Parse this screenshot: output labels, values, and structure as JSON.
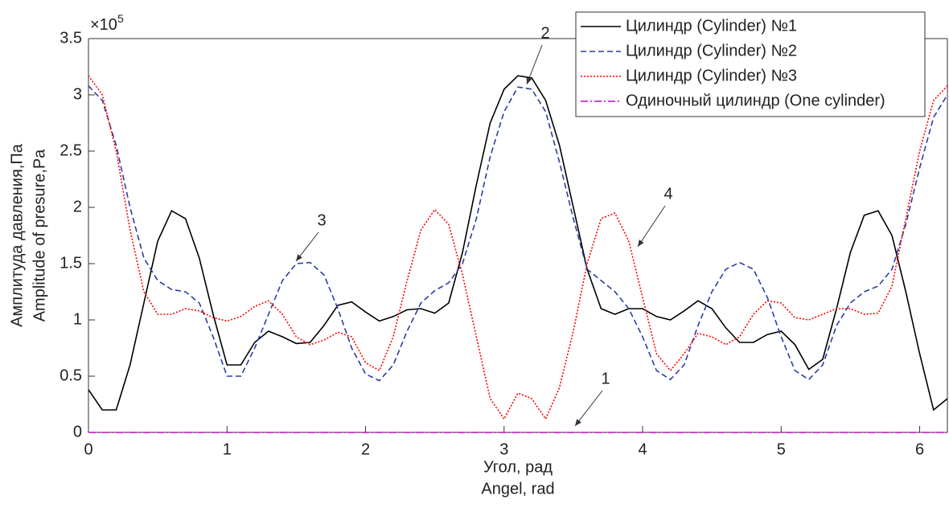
{
  "chart_data": {
    "type": "line",
    "x_label": [
      "Угол, рад",
      "Angel, rad"
    ],
    "y_label": [
      "Амплитуда давления,Па",
      "Amplitude of presure,Pa"
    ],
    "y_exponent": {
      "base": "×10",
      "power": "5"
    },
    "x": [
      0,
      0.1,
      0.2,
      0.3,
      0.4,
      0.5,
      0.6,
      0.7,
      0.8,
      0.9,
      1,
      1.1,
      1.2,
      1.3,
      1.4,
      1.5,
      1.6,
      1.7,
      1.8,
      1.9,
      2,
      2.1,
      2.2,
      2.3,
      2.4,
      2.5,
      2.6,
      2.7,
      2.8,
      2.9,
      3,
      3.1,
      3.2,
      3.3,
      3.4,
      3.5,
      3.6,
      3.7,
      3.8,
      3.9,
      4,
      4.1,
      4.2,
      4.3,
      4.4,
      4.5,
      4.6,
      4.7,
      4.8,
      4.9,
      5,
      5.1,
      5.2,
      5.3,
      5.4,
      5.5,
      5.6,
      5.7,
      5.8,
      5.9,
      6,
      6.1,
      6.2
    ],
    "series": [
      {
        "name": "Цилиндр (Cylinder) №1",
        "color": "#000000",
        "dash": "solid",
        "values": [
          0.38,
          0.2,
          0.2,
          0.6,
          1.15,
          1.7,
          1.97,
          1.9,
          1.55,
          1.05,
          0.6,
          0.6,
          0.8,
          0.9,
          0.85,
          0.79,
          0.8,
          0.95,
          1.13,
          1.16,
          1.07,
          0.99,
          1.03,
          1.09,
          1.1,
          1.06,
          1.15,
          1.6,
          2.2,
          2.75,
          3.05,
          3.17,
          3.15,
          2.95,
          2.55,
          2.0,
          1.45,
          1.1,
          1.05,
          1.1,
          1.1,
          1.03,
          1.0,
          1.08,
          1.17,
          1.1,
          0.93,
          0.8,
          0.8,
          0.87,
          0.9,
          0.78,
          0.56,
          0.65,
          1.1,
          1.6,
          1.93,
          1.97,
          1.75,
          1.25,
          0.7,
          0.2,
          0.3
        ]
      },
      {
        "name": "Цилиндр (Cylinder) №2",
        "color": "#2b3fa0",
        "dash": "dashed",
        "values": [
          3.08,
          2.95,
          2.55,
          2.0,
          1.55,
          1.35,
          1.27,
          1.25,
          1.15,
          0.85,
          0.5,
          0.5,
          0.75,
          1.05,
          1.35,
          1.5,
          1.51,
          1.4,
          1.1,
          0.75,
          0.52,
          0.46,
          0.6,
          0.9,
          1.15,
          1.26,
          1.33,
          1.5,
          1.9,
          2.45,
          2.85,
          3.07,
          3.05,
          2.85,
          2.4,
          1.9,
          1.45,
          1.35,
          1.25,
          1.1,
          0.85,
          0.55,
          0.47,
          0.6,
          0.95,
          1.25,
          1.45,
          1.51,
          1.45,
          1.2,
          0.85,
          0.55,
          0.47,
          0.6,
          0.95,
          1.15,
          1.25,
          1.3,
          1.45,
          1.85,
          2.35,
          2.8,
          3.0
        ]
      },
      {
        "name": "Цилиндр (Cylinder) №3",
        "color": "#ff0000",
        "dash": "dotted",
        "values": [
          3.17,
          3.0,
          2.5,
          1.8,
          1.25,
          1.05,
          1.05,
          1.1,
          1.08,
          1.02,
          0.99,
          1.03,
          1.12,
          1.17,
          1.05,
          0.85,
          0.78,
          0.82,
          0.89,
          0.85,
          0.62,
          0.55,
          0.85,
          1.35,
          1.8,
          1.98,
          1.85,
          1.4,
          0.85,
          0.3,
          0.12,
          0.35,
          0.3,
          0.12,
          0.4,
          0.9,
          1.5,
          1.9,
          1.95,
          1.7,
          1.2,
          0.7,
          0.55,
          0.7,
          0.88,
          0.85,
          0.78,
          0.85,
          1.05,
          1.17,
          1.15,
          1.02,
          1.0,
          1.05,
          1.1,
          1.1,
          1.05,
          1.06,
          1.3,
          1.9,
          2.5,
          2.95,
          3.08
        ]
      },
      {
        "name": "Одиночный цилиндр (One cylinder)",
        "color": "#cc00cc",
        "dash": "dashdot",
        "values": [
          0,
          0,
          0,
          0,
          0,
          0,
          0,
          0,
          0,
          0,
          0,
          0,
          0,
          0,
          0,
          0,
          0,
          0,
          0,
          0,
          0,
          0,
          0,
          0,
          0,
          0,
          0,
          0,
          0,
          0,
          0,
          0,
          0,
          0,
          0,
          0,
          0,
          0,
          0,
          0,
          0,
          0,
          0,
          0,
          0,
          0,
          0,
          0,
          0,
          0,
          0,
          0,
          0,
          0,
          0,
          0,
          0,
          0,
          0,
          0,
          0,
          0,
          0
        ]
      }
    ],
    "annotations": [
      "1",
      "2",
      "3",
      "4"
    ],
    "xlim": [
      0,
      6.2
    ],
    "ylim": [
      0,
      3.5
    ],
    "xticks": [
      0,
      1,
      2,
      3,
      4,
      5,
      6
    ],
    "yticks": [
      0,
      0.5,
      1,
      1.5,
      2,
      2.5,
      3,
      3.5
    ],
    "legend": "northeast"
  }
}
